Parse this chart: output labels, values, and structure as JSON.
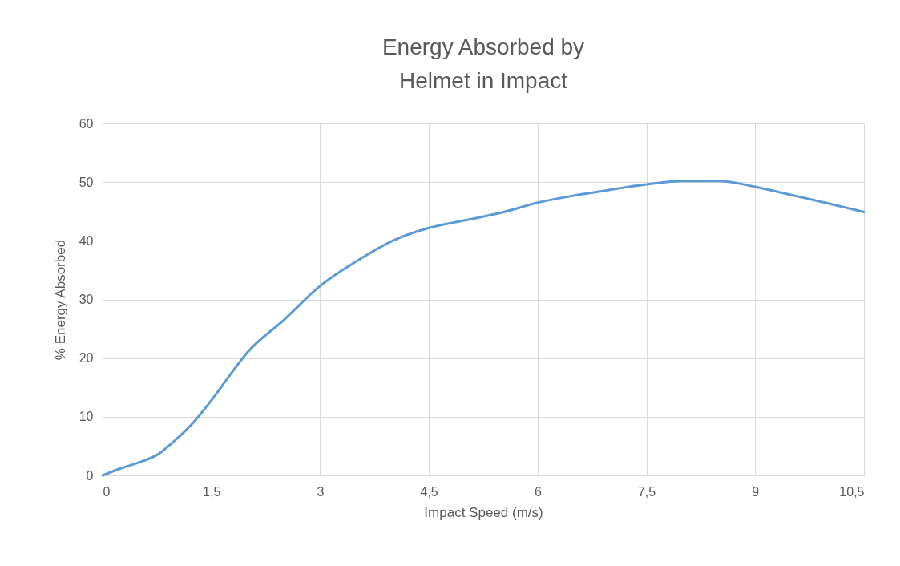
{
  "chart_data": {
    "type": "line",
    "title": "Energy Absorbed by\nHelmet in Impact",
    "xlabel": "Impact Speed (m/s)",
    "ylabel": "% Energy Absorbed",
    "x": [
      0,
      0.25,
      0.5,
      0.75,
      1.0,
      1.25,
      1.5,
      1.75,
      2.0,
      2.5,
      3.0,
      3.5,
      4.0,
      4.5,
      5.0,
      5.5,
      6.0,
      6.5,
      7.0,
      7.5,
      8.0,
      8.5,
      9.0,
      9.5,
      10.0,
      10.5
    ],
    "series": [
      {
        "color": "#5b9bd5",
        "values": [
          0,
          1.2,
          2.2,
          3.5,
          6,
          9,
          12.8,
          17,
          21,
          26.5,
          32.3,
          36.5,
          40,
          42.2,
          43.5,
          44.8,
          46.5,
          47.7,
          48.7,
          49.6,
          50.2,
          50.2,
          49.2,
          47.8,
          46.4,
          44.9
        ]
      }
    ],
    "xlim": [
      0,
      10.5
    ],
    "xticks": [
      0,
      {
        "value": 1.5,
        "label": "1,5"
      },
      3,
      {
        "value": 4.5,
        "label": "4,5"
      },
      6,
      {
        "value": 7.5,
        "label": "7,5"
      },
      9,
      {
        "value": 10.5,
        "label": "10,5"
      }
    ],
    "ylim": [
      0,
      60
    ],
    "yticks": [
      0,
      10,
      20,
      30,
      40,
      50,
      60
    ],
    "grid": true,
    "marker": "none",
    "line_style": "solid"
  }
}
